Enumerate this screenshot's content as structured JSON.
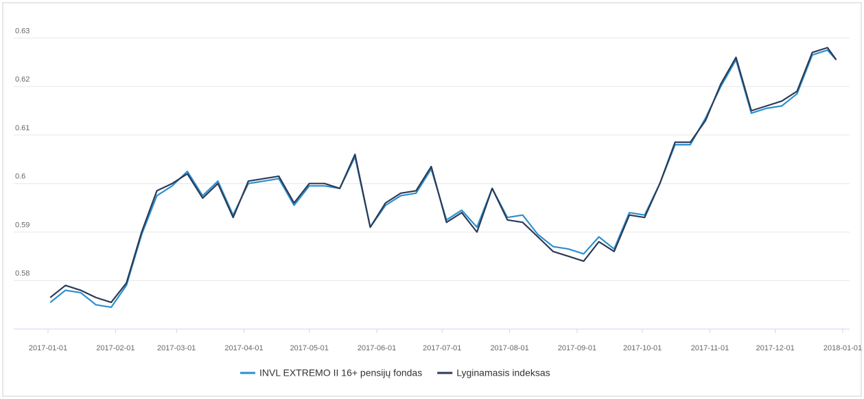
{
  "chart_data": {
    "type": "line",
    "x": [
      "2017-01-02",
      "2017-01-09",
      "2017-01-16",
      "2017-01-23",
      "2017-01-30",
      "2017-02-06",
      "2017-02-13",
      "2017-02-20",
      "2017-02-27",
      "2017-03-06",
      "2017-03-13",
      "2017-03-20",
      "2017-03-27",
      "2017-04-03",
      "2017-04-10",
      "2017-04-17",
      "2017-04-24",
      "2017-05-01",
      "2017-05-08",
      "2017-05-15",
      "2017-05-22",
      "2017-05-29",
      "2017-06-05",
      "2017-06-12",
      "2017-06-19",
      "2017-06-26",
      "2017-07-03",
      "2017-07-10",
      "2017-07-17",
      "2017-07-24",
      "2017-07-31",
      "2017-08-07",
      "2017-08-14",
      "2017-08-21",
      "2017-08-28",
      "2017-09-04",
      "2017-09-11",
      "2017-09-18",
      "2017-09-25",
      "2017-10-02",
      "2017-10-09",
      "2017-10-16",
      "2017-10-23",
      "2017-10-30",
      "2017-11-06",
      "2017-11-13",
      "2017-11-20",
      "2017-11-27",
      "2017-12-04",
      "2017-12-11",
      "2017-12-18",
      "2017-12-25",
      "2017-12-29"
    ],
    "series": [
      {
        "name": "INVL EXTREMO II 16+ pensijų fondas",
        "color": "#2a8fcf",
        "values": [
          0.5755,
          0.578,
          0.5775,
          0.575,
          0.5745,
          0.579,
          0.5895,
          0.5975,
          0.5995,
          0.6025,
          0.5975,
          0.6005,
          0.5935,
          0.6,
          0.6005,
          0.601,
          0.5955,
          0.5995,
          0.5995,
          0.599,
          0.6055,
          0.591,
          0.5955,
          0.5975,
          0.598,
          0.603,
          0.5925,
          0.5945,
          0.591,
          0.599,
          0.593,
          0.5935,
          0.5895,
          0.587,
          0.5865,
          0.5855,
          0.589,
          0.5865,
          0.594,
          0.5935,
          0.6,
          0.608,
          0.608,
          0.6135,
          0.62,
          0.6255,
          0.6145,
          0.6155,
          0.616,
          0.6185,
          0.6265,
          0.6275,
          0.6255
        ]
      },
      {
        "name": "Lyginamasis indeksas",
        "color": "#2b3a55",
        "values": [
          0.5765,
          0.579,
          0.578,
          0.5765,
          0.5755,
          0.5795,
          0.59,
          0.5985,
          0.6,
          0.602,
          0.597,
          0.6,
          0.593,
          0.6005,
          0.601,
          0.6015,
          0.596,
          0.6,
          0.6,
          0.599,
          0.606,
          0.591,
          0.596,
          0.598,
          0.5985,
          0.6035,
          0.592,
          0.594,
          0.59,
          0.599,
          0.5925,
          0.592,
          0.589,
          0.586,
          0.585,
          0.584,
          0.588,
          0.586,
          0.5935,
          0.593,
          0.6,
          0.6085,
          0.6085,
          0.613,
          0.6205,
          0.626,
          0.615,
          0.616,
          0.617,
          0.619,
          0.627,
          0.628,
          0.6255
        ]
      }
    ],
    "xlim": [
      "2017-01-01",
      "2018-01-01"
    ],
    "xticks": [
      "2017-01-01",
      "2017-02-01",
      "2017-03-01",
      "2017-04-01",
      "2017-05-01",
      "2017-06-01",
      "2017-07-01",
      "2017-08-01",
      "2017-09-01",
      "2017-10-01",
      "2017-11-01",
      "2017-12-01",
      "2018-01-01"
    ],
    "ylim": [
      0.57,
      0.635
    ],
    "yticks": [
      0.58,
      0.59,
      0.6,
      0.61,
      0.62,
      0.63
    ],
    "grid": true,
    "legend": "bottom"
  }
}
